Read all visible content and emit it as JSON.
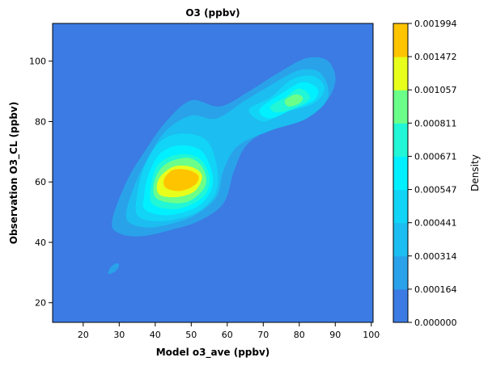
{
  "chart_data": {
    "type": "heatmap",
    "title": "O3 (ppbv)",
    "xlabel": "Model o3_ave (ppbv)",
    "ylabel": "Observation O3_CL (ppbv)",
    "xlim": [
      11.5,
      100.5
    ],
    "ylim": [
      13.5,
      112.5
    ],
    "x_ticks": [
      20,
      30,
      40,
      50,
      60,
      70,
      80,
      90,
      100
    ],
    "y_ticks": [
      20,
      40,
      60,
      80,
      100
    ],
    "grid": false,
    "colorbar": {
      "label": "Density",
      "levels": [
        "0.000000",
        "0.000164",
        "0.000314",
        "0.000441",
        "0.000547",
        "0.000671",
        "0.000811",
        "0.001057",
        "0.001472",
        "0.001994"
      ],
      "colors": [
        "#3b7be3",
        "#2aa2ea",
        "#1cbdf0",
        "#12d4f6",
        "#00f0ff",
        "#21f6d6",
        "#6bff8a",
        "#e8ff1c",
        "#ffc400"
      ]
    },
    "density_peaks": [
      {
        "x": 48,
        "y": 61,
        "level": "0.001472"
      },
      {
        "x": 80,
        "y": 88,
        "level": "0.000811"
      },
      {
        "x": 29,
        "y": 31,
        "level": "0.000164"
      }
    ]
  }
}
